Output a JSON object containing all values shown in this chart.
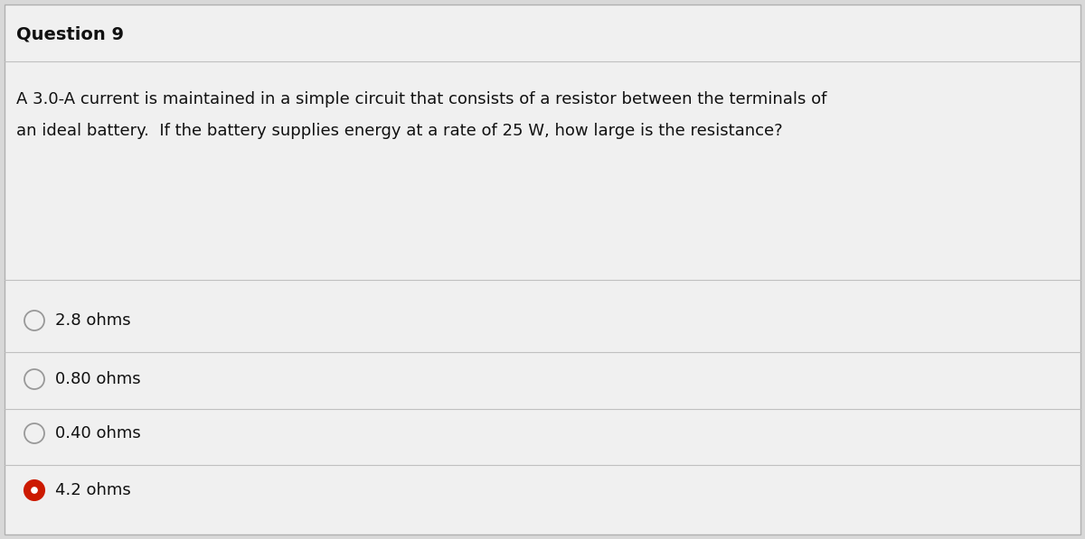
{
  "title": "Question 9",
  "question_line1": "A 3.0-A current is maintained in a simple circuit that consists of a resistor between the terminals of",
  "question_line2": "an ideal battery.  If the battery supplies energy at a rate of 25 W, how large is the resistance?",
  "options": [
    {
      "label": "2.8 ohms",
      "selected": false
    },
    {
      "label": "0.80 ohms",
      "selected": false
    },
    {
      "label": "0.40 ohms",
      "selected": false
    },
    {
      "label": "4.2 ohms",
      "selected": true
    }
  ],
  "bg_color": "#d8d8d8",
  "card_color": "#f0f0f0",
  "title_fontsize": 14,
  "question_fontsize": 13,
  "option_fontsize": 13,
  "selected_color": "#cc1a00",
  "unselected_color": "#999999",
  "text_color": "#111111",
  "divider_color": "#c0c0c0",
  "fig_width": 12.0,
  "fig_height": 5.97
}
